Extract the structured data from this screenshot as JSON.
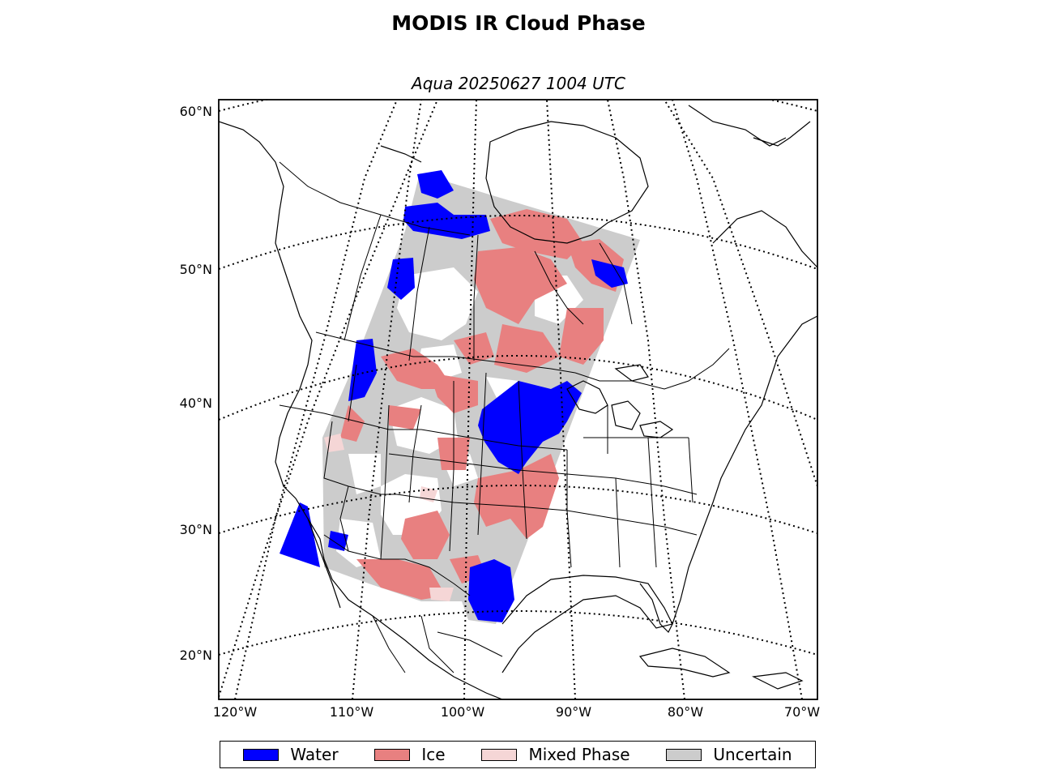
{
  "title": "MODIS IR Cloud Phase",
  "subtitle": "Aqua 20250627 1004 UTC",
  "latitude_labels": [
    "60°N",
    "50°N",
    "40°N",
    "30°N",
    "20°N"
  ],
  "longitude_labels": [
    "120°W",
    "110°W",
    "100°W",
    "90°W",
    "80°W",
    "70°W"
  ],
  "legend": [
    {
      "label": "Water",
      "color": "#0000ff",
      "icon": "water-swatch"
    },
    {
      "label": "Ice",
      "color": "#e88080",
      "icon": "ice-swatch"
    },
    {
      "label": "Mixed Phase",
      "color": "#f5d6d6",
      "icon": "mixed-phase-swatch"
    },
    {
      "label": "Uncertain",
      "color": "#cccccc",
      "icon": "uncertain-swatch"
    }
  ]
}
